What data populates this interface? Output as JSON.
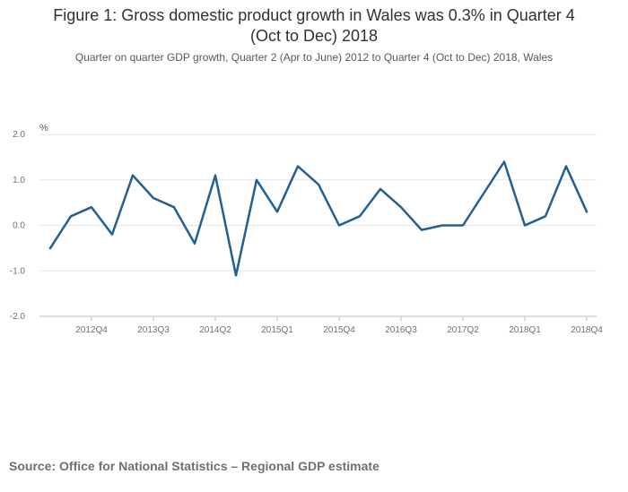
{
  "title_lines": [
    "Figure 1: Gross domestic product growth in Wales was 0.3% in Quarter 4",
    "(Oct to Dec) 2018"
  ],
  "subtitle": "Quarter on quarter GDP growth, Quarter 2 (Apr to June) 2012 to Quarter 4 (Oct to Dec) 2018, Wales",
  "source": "Source: Office for National Statistics – Regional GDP estimate",
  "colors": {
    "line": "#206095",
    "grid": "#e6e6e6",
    "axis": "#bfbfbf"
  },
  "chart_data": {
    "type": "line",
    "title": "Figure 1: Gross domestic product growth in Wales was 0.3% in Quarter 4 (Oct to Dec) 2018",
    "ylabel": "%",
    "xlabel": "",
    "ylim": [
      -2.0,
      2.0
    ],
    "yticks": [
      "2.0",
      "1.0",
      "0.0",
      "-1.0",
      "-2.0"
    ],
    "ytick_values": [
      2,
      1,
      0,
      -1,
      -2
    ],
    "categories": [
      "2012Q2",
      "2012Q3",
      "2012Q4",
      "2013Q1",
      "2013Q2",
      "2013Q3",
      "2013Q4",
      "2014Q1",
      "2014Q2",
      "2014Q3",
      "2014Q4",
      "2015Q1",
      "2015Q2",
      "2015Q3",
      "2015Q4",
      "2016Q1",
      "2016Q2",
      "2016Q3",
      "2016Q4",
      "2017Q1",
      "2017Q2",
      "2017Q3",
      "2017Q4",
      "2018Q1",
      "2018Q2",
      "2018Q3",
      "2018Q4"
    ],
    "xtick_labels": [
      "2012Q4",
      "2013Q3",
      "2014Q2",
      "2015Q1",
      "2015Q4",
      "2016Q3",
      "2017Q2",
      "2018Q1",
      "2018Q4"
    ],
    "series": [
      {
        "name": "Wales",
        "values": [
          -0.5,
          0.2,
          0.4,
          -0.2,
          1.1,
          0.6,
          0.4,
          -0.4,
          1.1,
          -1.1,
          1.0,
          0.3,
          1.3,
          0.9,
          0.0,
          0.2,
          0.8,
          0.4,
          -0.1,
          0.0,
          0.0,
          0.7,
          1.4,
          0.0,
          0.2,
          1.3,
          0.3
        ]
      }
    ]
  }
}
